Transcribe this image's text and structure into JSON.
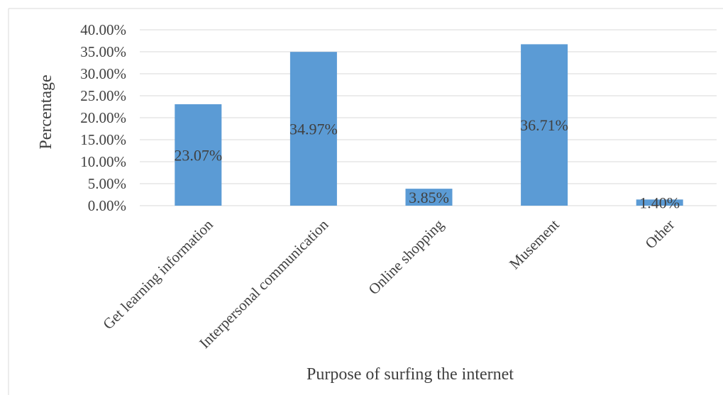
{
  "chart_data": {
    "type": "bar",
    "title": "",
    "xlabel": "Purpose of surfing the internet",
    "ylabel": "Percentage",
    "categories": [
      "Get learning information",
      "Interpersonal communication",
      "Online shopping",
      "Musement",
      "Other"
    ],
    "values": [
      23.07,
      34.97,
      3.85,
      36.71,
      1.4
    ],
    "data_labels": [
      "23.07%",
      "34.97%",
      "3.85%",
      "36.71%",
      "1.40%"
    ],
    "ylim": [
      0,
      40
    ],
    "yticks": [
      0,
      5,
      10,
      15,
      20,
      25,
      30,
      35,
      40
    ],
    "ytick_labels": [
      "0.00%",
      "5.00%",
      "10.00%",
      "15.00%",
      "20.00%",
      "25.00%",
      "30.00%",
      "35.00%",
      "40.00%"
    ],
    "grid": true,
    "legend": "none",
    "bar_color": "#5b9bd5",
    "grid_color": "#d9d9d9",
    "text_color": "#404040"
  }
}
